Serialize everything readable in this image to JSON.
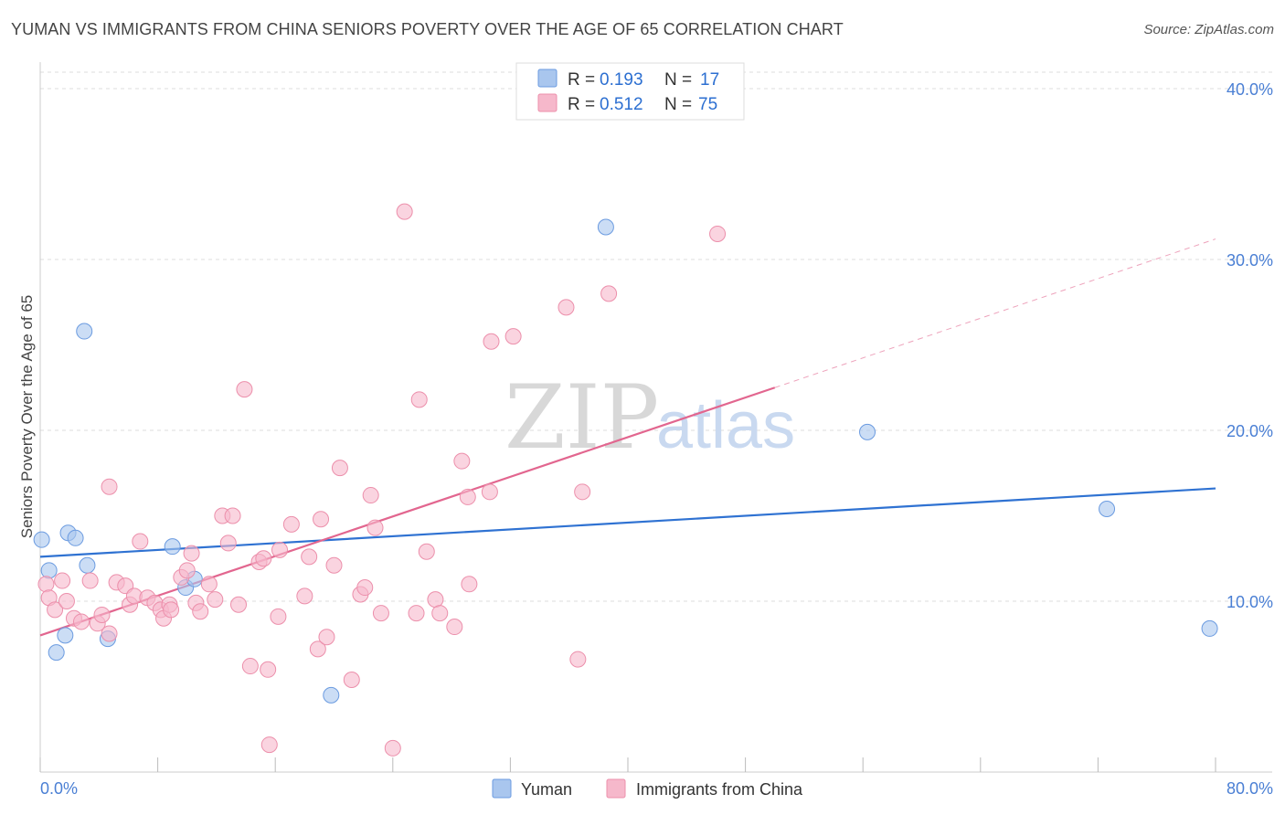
{
  "title": "YUMAN VS IMMIGRANTS FROM CHINA SENIORS POVERTY OVER THE AGE OF 65 CORRELATION CHART",
  "source": "Source: ZipAtlas.com",
  "watermark": {
    "zip": "ZIP",
    "atlas": "atlas"
  },
  "legend": {
    "r_label": "R =",
    "n_label": "N =",
    "rows": [
      {
        "name": "Yuman",
        "r": "0.193",
        "n": "17",
        "color": "#a9c6ee"
      },
      {
        "name": "Immigrants from China",
        "r": "0.512",
        "n": "75",
        "color": "#f6b8cb"
      }
    ]
  },
  "chart_data": {
    "type": "scatter",
    "title": "YUMAN VS IMMIGRANTS FROM CHINA SENIORS POVERTY OVER THE AGE OF 65 CORRELATION CHART",
    "xlabel": "",
    "ylabel": "Seniors Poverty Over the Age of 65",
    "xlim": [
      0,
      80
    ],
    "ylim": [
      0,
      40
    ],
    "x_tick_labels": [
      "0.0%",
      "80.0%"
    ],
    "y_tick_values": [
      10,
      20,
      30,
      40
    ],
    "y_tick_labels": [
      "10.0%",
      "20.0%",
      "30.0%",
      "40.0%"
    ],
    "grid": true,
    "series": [
      {
        "name": "Yuman",
        "color": "#a9c6ee",
        "stroke": "#6b9be0",
        "trend_color": "#2f72d2",
        "trend": {
          "x0": 0,
          "y0": 12.6,
          "x1": 80,
          "y1": 16.6,
          "dash_from": null
        },
        "points": [
          [
            0.1,
            13.6
          ],
          [
            0.6,
            11.8
          ],
          [
            1.1,
            7.0
          ],
          [
            1.7,
            8.0
          ],
          [
            1.9,
            14.0
          ],
          [
            2.4,
            13.7
          ],
          [
            3.0,
            25.8
          ],
          [
            3.2,
            12.1
          ],
          [
            4.6,
            7.8
          ],
          [
            9.0,
            13.2
          ],
          [
            9.9,
            10.8
          ],
          [
            10.5,
            11.3
          ],
          [
            19.8,
            4.5
          ],
          [
            38.5,
            31.9
          ],
          [
            56.3,
            19.9
          ],
          [
            72.6,
            15.4
          ],
          [
            79.6,
            8.4
          ]
        ]
      },
      {
        "name": "Immigrants from China",
        "color": "#f6b8cb",
        "stroke": "#ec8fab",
        "trend_color": "#e2668f",
        "trend": {
          "x0": 0,
          "y0": 8.0,
          "x1": 80,
          "y1": 31.2,
          "dash_from": 50
        },
        "points": [
          [
            0.4,
            11.0
          ],
          [
            0.6,
            10.2
          ],
          [
            1.0,
            9.5
          ],
          [
            1.5,
            11.2
          ],
          [
            1.8,
            10.0
          ],
          [
            2.3,
            9.0
          ],
          [
            2.8,
            8.8
          ],
          [
            3.4,
            11.2
          ],
          [
            3.9,
            8.7
          ],
          [
            4.2,
            9.2
          ],
          [
            4.7,
            8.1
          ],
          [
            4.7,
            16.7
          ],
          [
            5.2,
            11.1
          ],
          [
            5.8,
            10.9
          ],
          [
            6.1,
            9.8
          ],
          [
            6.4,
            10.3
          ],
          [
            6.8,
            13.5
          ],
          [
            7.3,
            10.2
          ],
          [
            7.8,
            9.9
          ],
          [
            8.2,
            9.5
          ],
          [
            8.4,
            9.0
          ],
          [
            8.8,
            9.8
          ],
          [
            8.9,
            9.5
          ],
          [
            9.6,
            11.4
          ],
          [
            10.0,
            11.8
          ],
          [
            10.3,
            12.8
          ],
          [
            10.6,
            9.9
          ],
          [
            10.9,
            9.4
          ],
          [
            11.5,
            11.0
          ],
          [
            11.9,
            10.1
          ],
          [
            12.4,
            15.0
          ],
          [
            12.8,
            13.4
          ],
          [
            13.1,
            15.0
          ],
          [
            13.5,
            9.8
          ],
          [
            13.9,
            22.4
          ],
          [
            14.3,
            6.2
          ],
          [
            14.9,
            12.3
          ],
          [
            15.2,
            12.5
          ],
          [
            15.5,
            6.0
          ],
          [
            15.6,
            1.6
          ],
          [
            16.2,
            9.1
          ],
          [
            16.3,
            13.0
          ],
          [
            17.1,
            14.5
          ],
          [
            18.0,
            10.3
          ],
          [
            18.3,
            12.6
          ],
          [
            18.9,
            7.2
          ],
          [
            19.1,
            14.8
          ],
          [
            19.5,
            7.9
          ],
          [
            20.0,
            12.1
          ],
          [
            20.4,
            17.8
          ],
          [
            21.2,
            5.4
          ],
          [
            21.8,
            10.4
          ],
          [
            22.1,
            10.8
          ],
          [
            22.5,
            16.2
          ],
          [
            22.8,
            14.3
          ],
          [
            23.2,
            9.3
          ],
          [
            24.0,
            1.4
          ],
          [
            24.8,
            32.8
          ],
          [
            25.6,
            9.3
          ],
          [
            25.8,
            21.8
          ],
          [
            26.3,
            12.9
          ],
          [
            26.9,
            10.1
          ],
          [
            27.2,
            9.3
          ],
          [
            28.2,
            8.5
          ],
          [
            28.7,
            18.2
          ],
          [
            29.1,
            16.1
          ],
          [
            29.2,
            11.0
          ],
          [
            30.6,
            16.4
          ],
          [
            30.7,
            25.2
          ],
          [
            32.2,
            25.5
          ],
          [
            35.8,
            27.2
          ],
          [
            36.6,
            6.6
          ],
          [
            36.9,
            16.4
          ],
          [
            38.7,
            28.0
          ],
          [
            46.1,
            31.5
          ]
        ]
      }
    ]
  }
}
